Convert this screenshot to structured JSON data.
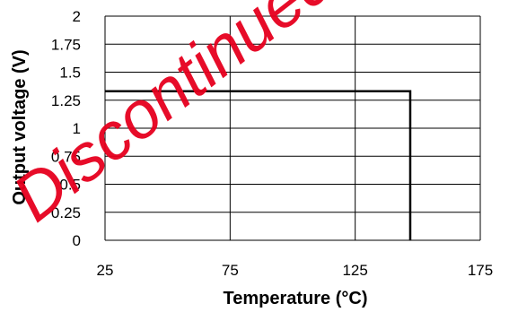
{
  "chart_data": {
    "type": "line",
    "xlabel": "Temperature (°C)",
    "ylabel": "Output voltage (V)",
    "xlim": [
      25,
      175
    ],
    "ylim": [
      0,
      2
    ],
    "x_ticks": [
      25,
      75,
      125,
      175
    ],
    "x_tick_labels": [
      "25",
      "75",
      "125",
      "175"
    ],
    "y_ticks": [
      0,
      0.25,
      0.5,
      0.75,
      1,
      1.25,
      1.5,
      1.75,
      2
    ],
    "y_tick_labels": [
      "0",
      "0.25",
      "0.5",
      "0.75",
      "1",
      "1.25",
      "1.5",
      "1.75",
      "2"
    ],
    "grid": true,
    "series": [
      {
        "x": [
          25,
          147,
          147
        ],
        "y": [
          1.33,
          1.33,
          0
        ]
      }
    ]
  },
  "watermark": {
    "text": "Discontinued",
    "color": "#e6001e"
  },
  "colors": {
    "line": "#000000",
    "grid": "#000000"
  }
}
